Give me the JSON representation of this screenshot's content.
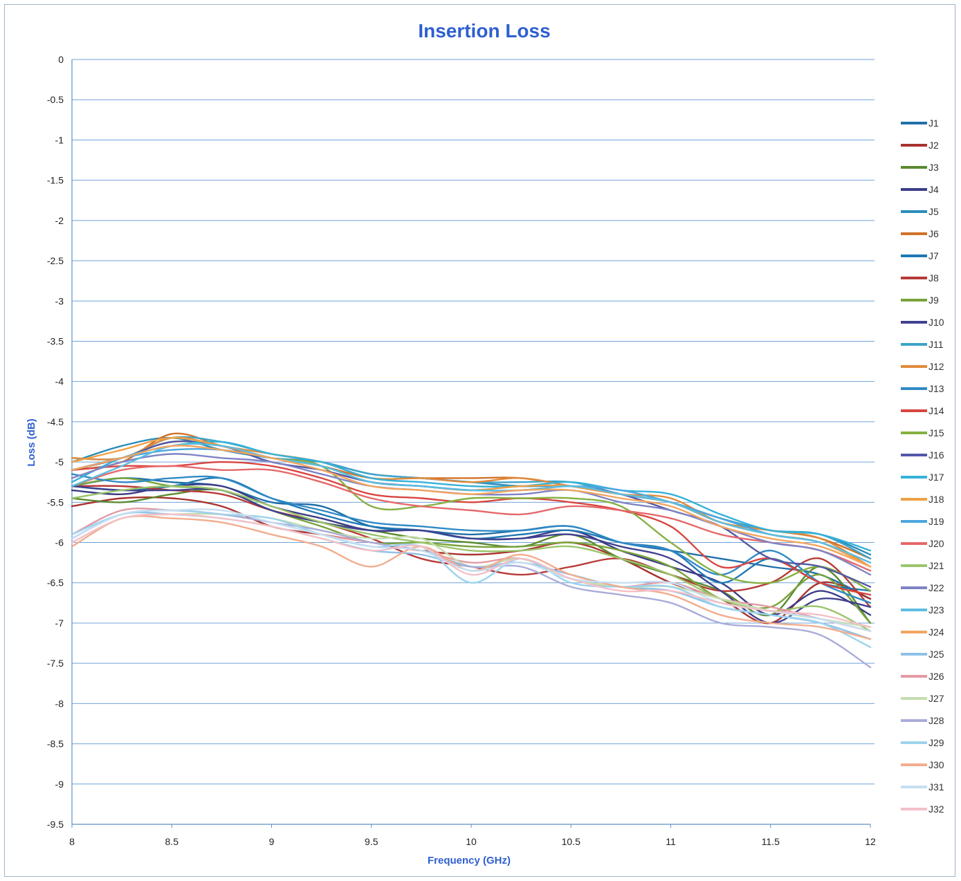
{
  "chart_data": {
    "type": "line",
    "title": "Insertion Loss",
    "xlabel": "Frequency (GHz)",
    "ylabel": "Loss (dB)",
    "xlim": [
      8,
      12
    ],
    "ylim": [
      -9.5,
      0
    ],
    "xticks": [
      "8",
      "8.5",
      "9",
      "9.5",
      "10",
      "10.5",
      "11",
      "11.5",
      "12"
    ],
    "yticks": [
      "0",
      "-0.5",
      "-1",
      "-1.5",
      "-2",
      "-2.5",
      "-3",
      "-3.5",
      "-4",
      "-4.5",
      "-5",
      "-5.5",
      "-6",
      "-6.5",
      "-7",
      "-7.5",
      "-8",
      "-8.5",
      "-9",
      "-9.5"
    ],
    "grid": true,
    "legend_position": "right",
    "x": [
      8,
      8.25,
      8.5,
      8.75,
      9,
      9.25,
      9.5,
      9.75,
      10,
      10.25,
      10.5,
      10.75,
      11,
      11.25,
      11.5,
      11.75,
      12
    ],
    "series": [
      {
        "name": "J1",
        "color": "#1f6fa8",
        "values": [
          -5.3,
          -5.2,
          -5.25,
          -5.3,
          -5.5,
          -5.55,
          -5.8,
          -5.85,
          -5.9,
          -5.85,
          -5.8,
          -6.0,
          -6.1,
          -6.2,
          -6.3,
          -6.4,
          -6.7
        ]
      },
      {
        "name": "J2",
        "color": "#a8322d",
        "values": [
          -5.55,
          -5.45,
          -5.45,
          -5.55,
          -5.8,
          -5.9,
          -6.0,
          -6.1,
          -6.15,
          -6.1,
          -6.0,
          -6.2,
          -6.5,
          -6.7,
          -7.0,
          -6.5,
          -6.7
        ]
      },
      {
        "name": "J3",
        "color": "#5a8a2e",
        "values": [
          -5.45,
          -5.5,
          -5.4,
          -5.35,
          -5.6,
          -5.75,
          -5.85,
          -5.95,
          -6.0,
          -6.05,
          -5.9,
          -6.2,
          -6.4,
          -6.6,
          -6.9,
          -6.3,
          -7.0
        ]
      },
      {
        "name": "J4",
        "color": "#3b3c86",
        "values": [
          -5.35,
          -5.4,
          -5.3,
          -5.3,
          -5.55,
          -5.7,
          -5.85,
          -5.85,
          -5.95,
          -5.95,
          -5.85,
          -6.1,
          -6.3,
          -6.5,
          -6.9,
          -6.6,
          -6.9
        ]
      },
      {
        "name": "J5",
        "color": "#2a8cba",
        "values": [
          -5.0,
          -4.8,
          -4.7,
          -4.85,
          -4.95,
          -5.0,
          -5.15,
          -5.2,
          -5.25,
          -5.3,
          -5.3,
          -5.4,
          -5.5,
          -5.7,
          -5.85,
          -5.9,
          -6.15
        ]
      },
      {
        "name": "J6",
        "color": "#d17127",
        "values": [
          -5.1,
          -5.0,
          -4.65,
          -4.8,
          -4.95,
          -5.05,
          -5.2,
          -5.2,
          -5.2,
          -5.2,
          -5.3,
          -5.4,
          -5.5,
          -5.75,
          -5.85,
          -5.95,
          -6.2
        ]
      },
      {
        "name": "J7",
        "color": "#1f78b4",
        "values": [
          -5.3,
          -5.35,
          -5.3,
          -5.2,
          -5.45,
          -5.65,
          -5.8,
          -5.85,
          -5.95,
          -5.9,
          -5.85,
          -6.0,
          -6.1,
          -6.5,
          -6.2,
          -6.5,
          -6.6
        ]
      },
      {
        "name": "J8",
        "color": "#b73b38",
        "values": [
          -5.3,
          -5.3,
          -5.35,
          -5.4,
          -5.6,
          -5.75,
          -5.95,
          -6.2,
          -6.3,
          -6.4,
          -6.3,
          -6.2,
          -6.4,
          -6.6,
          -6.5,
          -6.2,
          -6.8
        ]
      },
      {
        "name": "J9",
        "color": "#79a33a",
        "values": [
          -5.3,
          -5.2,
          -5.3,
          -5.35,
          -5.6,
          -5.8,
          -6.0,
          -6.0,
          -6.05,
          -6.05,
          -6.0,
          -6.1,
          -6.3,
          -6.7,
          -6.8,
          -6.4,
          -7.0
        ]
      },
      {
        "name": "J10",
        "color": "#40418f",
        "values": [
          -5.3,
          -5.35,
          -5.35,
          -5.35,
          -5.6,
          -5.75,
          -5.85,
          -5.85,
          -5.95,
          -5.95,
          -5.9,
          -6.05,
          -6.2,
          -6.6,
          -7.0,
          -6.7,
          -6.8
        ]
      },
      {
        "name": "J11",
        "color": "#3ea3c8",
        "values": [
          -4.95,
          -4.95,
          -4.7,
          -4.75,
          -4.9,
          -5.0,
          -5.15,
          -5.2,
          -5.25,
          -5.25,
          -5.25,
          -5.4,
          -5.5,
          -5.7,
          -5.85,
          -5.9,
          -6.2
        ]
      },
      {
        "name": "J12",
        "color": "#e08a3c",
        "values": [
          -4.95,
          -4.95,
          -4.7,
          -4.8,
          -4.9,
          -5.0,
          -5.2,
          -5.2,
          -5.25,
          -5.2,
          -5.3,
          -5.4,
          -5.45,
          -5.75,
          -5.85,
          -5.95,
          -6.3
        ]
      },
      {
        "name": "J13",
        "color": "#2f89c5",
        "values": [
          -5.15,
          -5.25,
          -5.2,
          -5.2,
          -5.45,
          -5.6,
          -5.75,
          -5.8,
          -5.85,
          -5.85,
          -5.8,
          -6.0,
          -6.1,
          -6.4,
          -6.1,
          -6.5,
          -6.75
        ]
      },
      {
        "name": "J14",
        "color": "#d9453f",
        "values": [
          -5.1,
          -5.05,
          -5.05,
          -5.0,
          -5.05,
          -5.2,
          -5.4,
          -5.45,
          -5.5,
          -5.45,
          -5.5,
          -5.6,
          -5.8,
          -6.3,
          -6.2,
          -6.5,
          -6.65
        ]
      },
      {
        "name": "J15",
        "color": "#86b043",
        "values": [
          -5.1,
          -4.95,
          -4.75,
          -4.8,
          -4.95,
          -5.05,
          -5.55,
          -5.55,
          -5.45,
          -5.45,
          -5.45,
          -5.55,
          -6.0,
          -6.4,
          -6.5,
          -6.3,
          -6.6
        ]
      },
      {
        "name": "J16",
        "color": "#5356a6",
        "values": [
          -5.1,
          -4.95,
          -4.75,
          -4.8,
          -5.0,
          -5.1,
          -5.25,
          -5.3,
          -5.35,
          -5.3,
          -5.3,
          -5.4,
          -5.6,
          -5.8,
          -6.2,
          -6.3,
          -6.55
        ]
      },
      {
        "name": "J17",
        "color": "#35b1d8",
        "values": [
          -5.25,
          -4.95,
          -4.8,
          -4.75,
          -4.9,
          -5.0,
          -5.2,
          -5.25,
          -5.3,
          -5.3,
          -5.25,
          -5.35,
          -5.4,
          -5.65,
          -5.85,
          -5.9,
          -6.1
        ]
      },
      {
        "name": "J18",
        "color": "#f0a045",
        "values": [
          -5.0,
          -4.85,
          -4.7,
          -4.8,
          -4.95,
          -5.05,
          -5.25,
          -5.3,
          -5.35,
          -5.3,
          -5.3,
          -5.4,
          -5.5,
          -5.75,
          -5.9,
          -6.0,
          -6.3
        ]
      },
      {
        "name": "J19",
        "color": "#4ba6dd",
        "values": [
          -5.1,
          -4.95,
          -4.85,
          -4.85,
          -4.95,
          -5.05,
          -5.25,
          -5.3,
          -5.35,
          -5.35,
          -5.3,
          -5.35,
          -5.5,
          -5.7,
          -5.9,
          -6.0,
          -6.25
        ]
      },
      {
        "name": "J20",
        "color": "#e5686a",
        "values": [
          -5.3,
          -5.1,
          -5.05,
          -5.1,
          -5.1,
          -5.25,
          -5.45,
          -5.55,
          -5.6,
          -5.65,
          -5.55,
          -5.6,
          -5.7,
          -5.9,
          -6.0,
          -6.1,
          -6.35
        ]
      },
      {
        "name": "J21",
        "color": "#9ac56a",
        "values": [
          -5.45,
          -5.35,
          -5.3,
          -5.35,
          -5.55,
          -5.75,
          -5.9,
          -6.0,
          -6.1,
          -6.1,
          -6.05,
          -6.2,
          -6.4,
          -6.7,
          -6.85,
          -6.8,
          -7.1
        ]
      },
      {
        "name": "J22",
        "color": "#7f83c4",
        "values": [
          -5.2,
          -5.0,
          -4.9,
          -4.95,
          -5.0,
          -5.15,
          -5.3,
          -5.35,
          -5.4,
          -5.4,
          -5.35,
          -5.5,
          -5.6,
          -5.8,
          -6.0,
          -6.1,
          -6.4
        ]
      },
      {
        "name": "J23",
        "color": "#5cbde0",
        "values": [
          -5.3,
          -5.05,
          -4.8,
          -4.8,
          -4.95,
          -5.05,
          -5.25,
          -5.3,
          -5.35,
          -5.35,
          -5.3,
          -5.4,
          -5.5,
          -5.75,
          -5.9,
          -6.0,
          -6.25
        ]
      },
      {
        "name": "J24",
        "color": "#f3a560",
        "values": [
          -5.1,
          -4.95,
          -4.8,
          -4.85,
          -4.95,
          -5.1,
          -5.3,
          -5.35,
          -5.4,
          -5.35,
          -5.35,
          -5.45,
          -5.55,
          -5.8,
          -5.95,
          -6.05,
          -6.3
        ]
      },
      {
        "name": "J25",
        "color": "#8ec1e8",
        "values": [
          -5.95,
          -5.65,
          -5.65,
          -5.7,
          -5.8,
          -5.95,
          -6.1,
          -6.15,
          -6.3,
          -6.25,
          -6.4,
          -6.55,
          -6.6,
          -6.8,
          -6.9,
          -7.0,
          -7.2
        ]
      },
      {
        "name": "J26",
        "color": "#e39aa3",
        "values": [
          -5.9,
          -5.6,
          -5.6,
          -5.65,
          -5.75,
          -5.9,
          -6.0,
          -6.1,
          -6.25,
          -6.2,
          -6.45,
          -6.55,
          -6.5,
          -6.7,
          -6.8,
          -6.95,
          -7.1
        ]
      },
      {
        "name": "J27",
        "color": "#c6dcae",
        "values": [
          -6.0,
          -5.7,
          -5.65,
          -5.65,
          -5.7,
          -5.85,
          -5.95,
          -5.95,
          -6.3,
          -6.2,
          -6.45,
          -6.55,
          -6.55,
          -6.7,
          -6.85,
          -6.95,
          -7.05
        ]
      },
      {
        "name": "J28",
        "color": "#a9acd9",
        "values": [
          -5.95,
          -5.65,
          -5.6,
          -5.65,
          -5.75,
          -5.85,
          -6.0,
          -6.1,
          -6.3,
          -6.3,
          -6.55,
          -6.65,
          -6.75,
          -7.0,
          -7.05,
          -7.15,
          -7.55
        ]
      },
      {
        "name": "J29",
        "color": "#9dd3ee",
        "values": [
          -5.9,
          -5.65,
          -5.6,
          -5.65,
          -5.7,
          -5.9,
          -6.05,
          -6.05,
          -6.5,
          -6.2,
          -6.5,
          -6.55,
          -6.55,
          -6.8,
          -6.9,
          -7.0,
          -7.3
        ]
      },
      {
        "name": "J30",
        "color": "#f2ad8e",
        "values": [
          -6.05,
          -5.7,
          -5.7,
          -5.75,
          -5.9,
          -6.05,
          -6.3,
          -6.05,
          -6.35,
          -6.15,
          -6.4,
          -6.55,
          -6.65,
          -6.9,
          -7.0,
          -7.05,
          -7.2
        ]
      },
      {
        "name": "J31",
        "color": "#c5dff3",
        "values": [
          -5.95,
          -5.65,
          -5.6,
          -5.6,
          -5.75,
          -5.9,
          -6.05,
          -6.1,
          -6.35,
          -6.25,
          -6.45,
          -6.5,
          -6.5,
          -6.75,
          -6.85,
          -6.95,
          -7.1
        ]
      },
      {
        "name": "J32",
        "color": "#f3c0c8",
        "values": [
          -6.0,
          -5.7,
          -5.65,
          -5.7,
          -5.8,
          -5.95,
          -6.1,
          -6.05,
          -6.4,
          -6.2,
          -6.45,
          -6.6,
          -6.6,
          -6.75,
          -6.85,
          -6.9,
          -7.05
        ]
      }
    ]
  }
}
